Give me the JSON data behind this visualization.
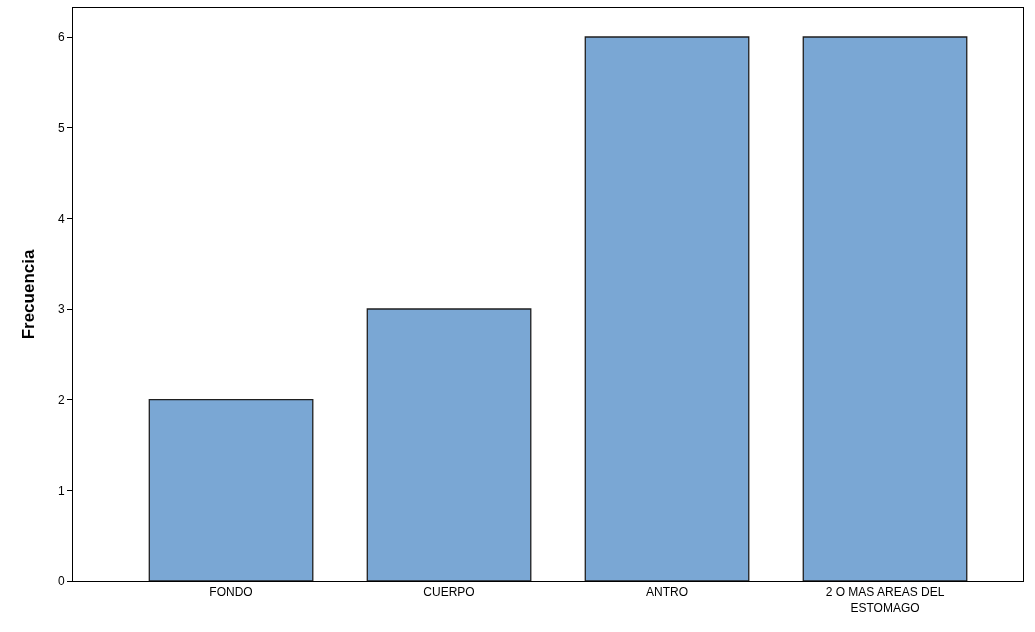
{
  "chart_data": {
    "type": "bar",
    "ylabel": "Frecuencia",
    "categories": [
      "FONDO",
      "CUERPO",
      "ANTRO",
      "2 O MAS AREAS DEL ESTOMAGO"
    ],
    "values": [
      2,
      3,
      6,
      6
    ],
    "color": "#7aa7d4",
    "ylim": [
      0,
      6.32
    ],
    "yticks": [
      0,
      1,
      2,
      3,
      4,
      5,
      6
    ],
    "grid": false
  }
}
